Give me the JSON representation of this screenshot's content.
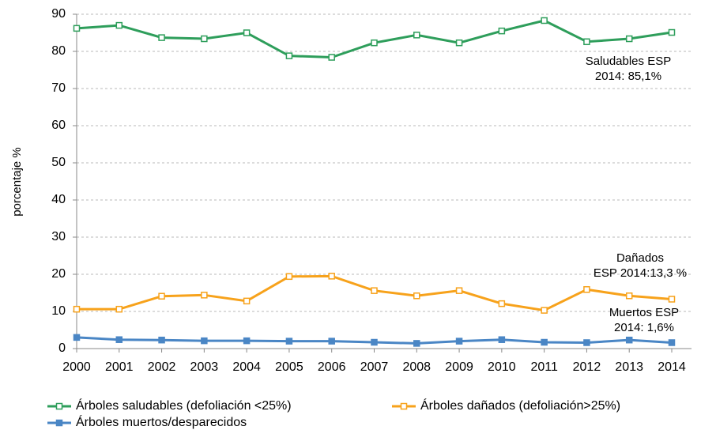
{
  "chart_data": {
    "type": "line",
    "y_label": "porcentaje %",
    "categories": [
      "2000",
      "2001",
      "2002",
      "2003",
      "2004",
      "2005",
      "2006",
      "2007",
      "2008",
      "2009",
      "2010",
      "2011",
      "2012",
      "2013",
      "2014"
    ],
    "series": [
      {
        "name": "Árboles saludables (defoliación <25%)",
        "color": "#2e9e5b",
        "marker": "open-square",
        "values": [
          86.2,
          87.0,
          83.7,
          83.4,
          85.0,
          78.8,
          78.4,
          82.3,
          84.4,
          82.3,
          85.5,
          88.3,
          82.6,
          83.4,
          85.1
        ]
      },
      {
        "name": "Árboles dañados (defoliación>25%)",
        "color": "#f7a21b",
        "marker": "open-square",
        "values": [
          10.6,
          10.6,
          14.1,
          14.4,
          12.8,
          19.4,
          19.5,
          15.6,
          14.2,
          15.6,
          12.1,
          10.3,
          15.9,
          14.2,
          13.3
        ]
      },
      {
        "name": "Árboles muertos/desparecidos",
        "color": "#4a86c5",
        "marker": "square",
        "values": [
          3.0,
          2.4,
          2.3,
          2.1,
          2.1,
          2.0,
          2.0,
          1.7,
          1.4,
          2.0,
          2.4,
          1.7,
          1.6,
          2.3,
          1.6
        ]
      }
    ],
    "annotations": [
      [
        "Saludables ESP",
        "2014: 85,1%"
      ],
      [
        "Dañados",
        "ESP 2014:13,3 %"
      ],
      [
        "Muertos ESP",
        "2014: 1,6%"
      ]
    ],
    "ylim": [
      0,
      90
    ],
    "yticks": [
      0,
      10,
      20,
      30,
      40,
      50,
      60,
      70,
      80,
      90
    ],
    "grid": true
  }
}
